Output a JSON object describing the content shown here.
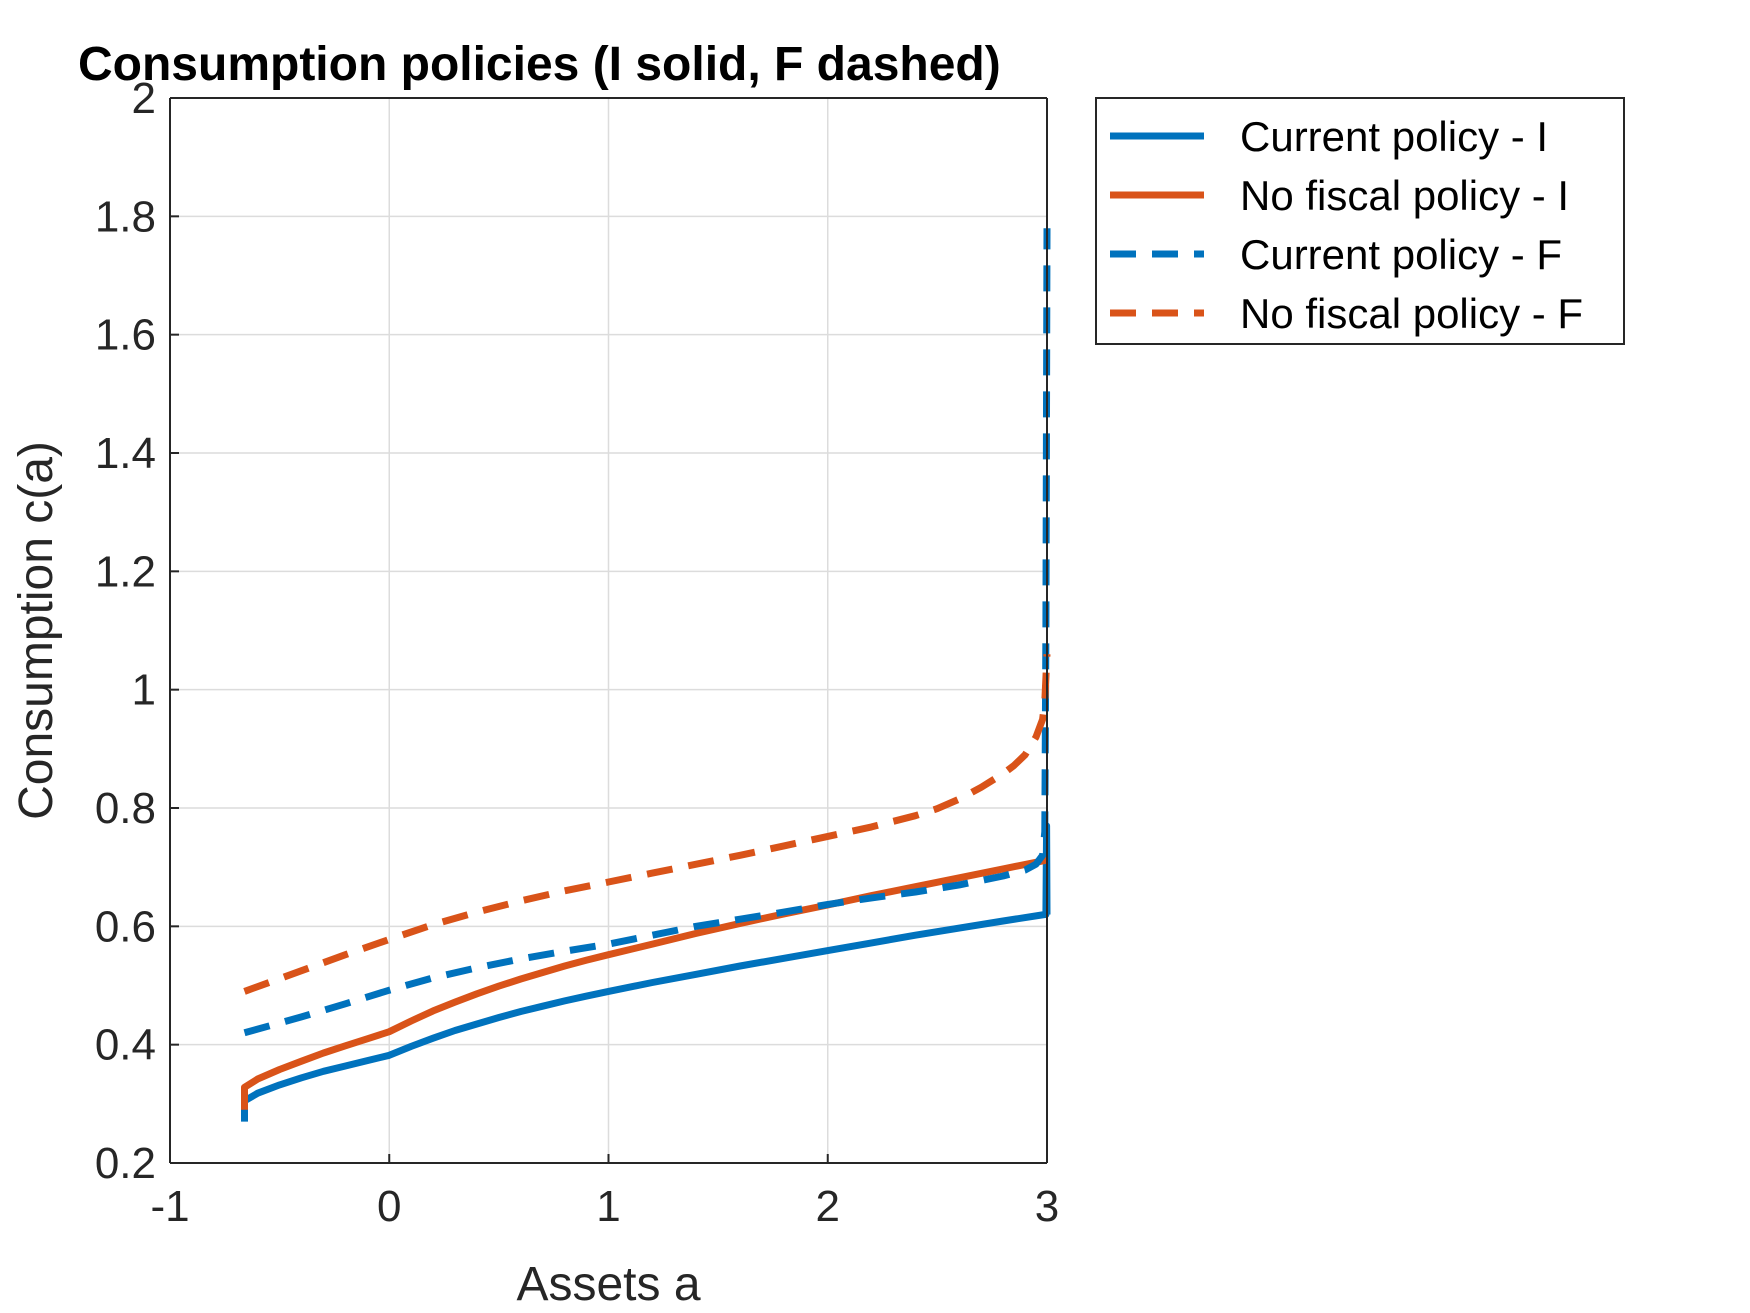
{
  "chart_data": {
    "type": "line",
    "title": "Consumption policies (I solid, F dashed)",
    "xlabel": "Assets a",
    "ylabel": "Consumption c(a)",
    "xlim": [
      -1,
      3
    ],
    "ylim": [
      0.2,
      2
    ],
    "xticks": [
      -1,
      0,
      1,
      2,
      3
    ],
    "xtick_labels": [
      "-1",
      "0",
      "1",
      "2",
      "3"
    ],
    "yticks": [
      0.2,
      0.4,
      0.6,
      0.8,
      1.0,
      1.2,
      1.4,
      1.6,
      1.8,
      2.0
    ],
    "ytick_labels": [
      "0.2",
      "0.4",
      "0.6",
      "0.8",
      "1",
      "1.2",
      "1.4",
      "1.6",
      "1.8",
      "2"
    ],
    "grid": true,
    "legend_position": "outside-top-right",
    "series": [
      {
        "name": "Current policy - I",
        "color": "#0072BD",
        "style": "solid",
        "x": [
          -0.66,
          -0.66,
          -0.6,
          -0.5,
          -0.4,
          -0.3,
          -0.2,
          -0.1,
          0.0,
          0.1,
          0.2,
          0.3,
          0.4,
          0.5,
          0.6,
          0.7,
          0.8,
          0.9,
          1.0,
          1.2,
          1.4,
          1.6,
          1.8,
          2.0,
          2.2,
          2.4,
          2.6,
          2.8,
          2.99,
          2.995,
          2.998,
          3.0
        ],
        "y": [
          0.27,
          0.305,
          0.318,
          0.332,
          0.344,
          0.355,
          0.364,
          0.373,
          0.382,
          0.397,
          0.411,
          0.424,
          0.435,
          0.446,
          0.456,
          0.465,
          0.474,
          0.482,
          0.49,
          0.505,
          0.519,
          0.533,
          0.546,
          0.559,
          0.572,
          0.585,
          0.597,
          0.609,
          0.62,
          0.62,
          0.77,
          0.62
        ]
      },
      {
        "name": "No fiscal policy - I",
        "color": "#D95319",
        "style": "solid",
        "x": [
          -0.66,
          -0.66,
          -0.6,
          -0.5,
          -0.4,
          -0.3,
          -0.2,
          -0.1,
          0.0,
          0.1,
          0.2,
          0.3,
          0.4,
          0.5,
          0.6,
          0.7,
          0.8,
          0.9,
          1.0,
          1.2,
          1.4,
          1.6,
          1.8,
          2.0,
          2.2,
          2.4,
          2.6,
          2.8,
          3.0
        ],
        "y": [
          0.29,
          0.328,
          0.342,
          0.358,
          0.372,
          0.386,
          0.398,
          0.41,
          0.422,
          0.44,
          0.457,
          0.472,
          0.486,
          0.499,
          0.511,
          0.522,
          0.533,
          0.543,
          0.552,
          0.57,
          0.588,
          0.605,
          0.621,
          0.636,
          0.652,
          0.667,
          0.682,
          0.697,
          0.712
        ]
      },
      {
        "name": "Current policy - F",
        "color": "#0072BD",
        "style": "dashed",
        "x": [
          -0.66,
          -0.4,
          -0.2,
          0.0,
          0.2,
          0.4,
          0.6,
          0.8,
          1.0,
          1.2,
          1.4,
          1.6,
          1.8,
          2.0,
          2.2,
          2.4,
          2.6,
          2.8,
          2.9,
          2.95,
          2.98,
          2.99,
          2.995,
          3.0
        ],
        "y": [
          0.42,
          0.447,
          0.469,
          0.492,
          0.513,
          0.53,
          0.545,
          0.558,
          0.57,
          0.585,
          0.6,
          0.612,
          0.624,
          0.637,
          0.648,
          0.658,
          0.67,
          0.685,
          0.695,
          0.705,
          0.72,
          0.76,
          1.1,
          1.78
        ]
      },
      {
        "name": "No fiscal policy - F",
        "color": "#D95319",
        "style": "dashed",
        "x": [
          -0.66,
          -0.4,
          -0.2,
          0.0,
          0.2,
          0.4,
          0.6,
          0.8,
          1.0,
          1.2,
          1.4,
          1.6,
          1.8,
          2.0,
          2.2,
          2.4,
          2.5,
          2.6,
          2.7,
          2.8,
          2.85,
          2.9,
          2.95,
          2.98,
          2.99,
          3.0
        ],
        "y": [
          0.49,
          0.525,
          0.552,
          0.578,
          0.603,
          0.624,
          0.643,
          0.66,
          0.675,
          0.69,
          0.705,
          0.72,
          0.736,
          0.752,
          0.768,
          0.787,
          0.799,
          0.815,
          0.835,
          0.858,
          0.872,
          0.89,
          0.92,
          0.95,
          0.98,
          1.06
        ]
      }
    ]
  }
}
